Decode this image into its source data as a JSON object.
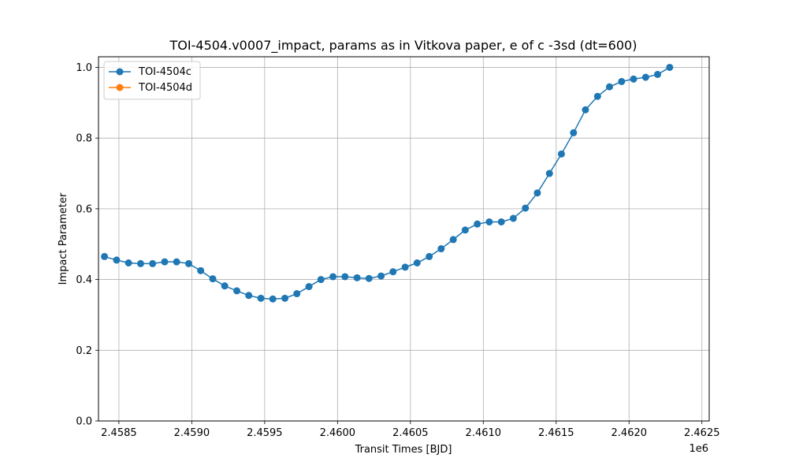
{
  "chart_data": {
    "type": "line",
    "title": "TOI-4504.v0007_impact, params as in Vitkova paper, e of c -3sd (dt=600)",
    "xlabel": "Transit Times [BJD]",
    "ylabel": "Impact Parameter",
    "x_offset_label": "1e6",
    "xlim": [
      2458360,
      2462550
    ],
    "ylim": [
      0.0,
      1.03
    ],
    "x_ticks": [
      2.4585,
      2.459,
      2.4595,
      2.46,
      2.4605,
      2.461,
      2.4615,
      2.462,
      2.4625
    ],
    "x_tick_labels": [
      "2.4585",
      "2.4590",
      "2.4595",
      "2.4600",
      "2.4605",
      "2.4610",
      "2.4615",
      "2.4620",
      "2.4625"
    ],
    "y_ticks": [
      0.0,
      0.2,
      0.4,
      0.6,
      0.8,
      1.0
    ],
    "y_tick_labels": [
      "0.0",
      "0.2",
      "0.4",
      "0.6",
      "0.8",
      "1.0"
    ],
    "grid": true,
    "legend_position": "top-left",
    "series": [
      {
        "name": "TOI-4504c",
        "color": "#1f77b4",
        "marker": "circle",
        "x": [
          2458401,
          2458484,
          2458566,
          2458649,
          2458731,
          2458814,
          2458896,
          2458979,
          2459061,
          2459144,
          2459226,
          2459309,
          2459391,
          2459474,
          2459556,
          2459639,
          2459721,
          2459804,
          2459886,
          2459969,
          2460051,
          2460134,
          2460216,
          2460299,
          2460381,
          2460464,
          2460546,
          2460629,
          2460711,
          2460794,
          2460876,
          2460959,
          2461041,
          2461124,
          2461206,
          2461289,
          2461371,
          2461454,
          2461536,
          2461619,
          2461701,
          2461784,
          2461866,
          2461949,
          2462031,
          2462114,
          2462196,
          2462279
        ],
        "y": [
          0.465,
          0.455,
          0.447,
          0.445,
          0.445,
          0.45,
          0.45,
          0.445,
          0.425,
          0.402,
          0.382,
          0.368,
          0.355,
          0.347,
          0.345,
          0.347,
          0.36,
          0.38,
          0.4,
          0.408,
          0.408,
          0.405,
          0.403,
          0.41,
          0.422,
          0.435,
          0.447,
          0.465,
          0.487,
          0.513,
          0.54,
          0.557,
          0.563,
          0.563,
          0.573,
          0.602,
          0.645,
          0.7,
          0.755,
          0.815,
          0.88,
          0.918,
          0.945,
          0.96,
          0.967,
          0.972,
          0.98,
          1.0
        ]
      },
      {
        "name": "TOI-4504d",
        "color": "#ff7f0e",
        "marker": "circle",
        "x": [],
        "y": []
      }
    ]
  }
}
